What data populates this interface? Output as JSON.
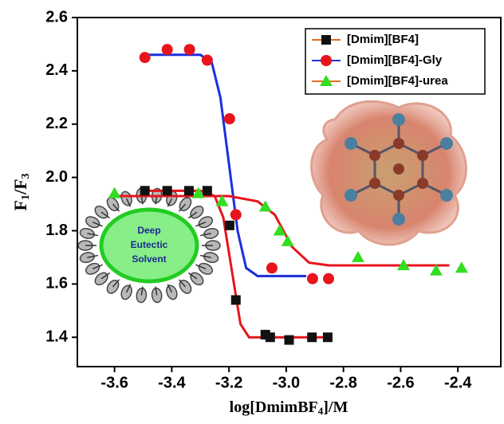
{
  "chart_data": {
    "type": "scatter",
    "y_label": [
      "F",
      "1",
      "/F",
      "3"
    ],
    "x_label": [
      "log[DmimBF",
      "4",
      "]/M"
    ],
    "inset_text": [
      "Deep",
      "Eutectic",
      "Solvent"
    ],
    "xlim": [
      -3.73,
      -2.25
    ],
    "ylim": [
      1.29,
      2.6
    ],
    "xticks": [
      -3.6,
      -3.4,
      -3.2,
      {
        "value": -3.0,
        "label": "-3.0"
      },
      -2.8,
      -2.6,
      -2.4
    ],
    "yticks": [
      1.4,
      1.6,
      1.8,
      {
        "value": 2.0,
        "label": "2.0"
      },
      2.2,
      2.4,
      2.6
    ],
    "legend": "top-right",
    "series": [
      {
        "name": "[Dmim][BF4]",
        "color": "#111111",
        "line_color": "#e07020",
        "marker": "square",
        "x": [
          -3.494,
          -3.416,
          -3.34,
          -3.276,
          -3.198,
          -3.176,
          -3.073,
          -3.056,
          -2.99,
          -2.91,
          -2.855
        ],
        "values": [
          1.95,
          1.95,
          1.95,
          1.95,
          1.82,
          1.54,
          1.41,
          1.4,
          1.39,
          1.4,
          1.4
        ]
      },
      {
        "name": "[Dmim][BF4]-Gly",
        "color": "#e8141c",
        "line_color": "#2233dd",
        "marker": "circle",
        "x": [
          -3.494,
          -3.416,
          -3.338,
          -3.276,
          -3.198,
          -3.176,
          -3.05,
          -2.908,
          -2.852
        ],
        "values": [
          2.45,
          2.48,
          2.48,
          2.44,
          2.22,
          1.86,
          1.66,
          1.62,
          1.62
        ]
      },
      {
        "name": "[Dmim][BF4]-urea",
        "color": "#33dd22",
        "line_color": "#e07020",
        "marker": "triangle",
        "x": [
          -3.6,
          -3.307,
          -3.224,
          -3.073,
          -3.023,
          -2.995,
          -2.749,
          -2.59,
          -2.476,
          -2.387
        ],
        "values": [
          1.94,
          1.94,
          1.91,
          1.89,
          1.8,
          1.76,
          1.7,
          1.67,
          1.65,
          1.66
        ]
      }
    ],
    "fit_lines": [
      {
        "color": "#e8141c",
        "x": [
          -3.49,
          -3.3,
          -3.25,
          -3.22,
          -3.19,
          -3.16,
          -3.13,
          -2.86
        ],
        "values": [
          1.95,
          1.95,
          1.93,
          1.85,
          1.65,
          1.45,
          1.4,
          1.4
        ]
      },
      {
        "color": "#1a2fe0",
        "x": [
          -3.49,
          -3.3,
          -3.26,
          -3.23,
          -3.2,
          -3.17,
          -3.14,
          -3.1,
          -2.93
        ],
        "values": [
          2.46,
          2.46,
          2.43,
          2.3,
          2.05,
          1.8,
          1.66,
          1.63,
          1.63
        ]
      },
      {
        "color": "#e8141c",
        "x": [
          -3.6,
          -3.2,
          -3.1,
          -3.04,
          -2.98,
          -2.92,
          -2.85,
          -2.43
        ],
        "values": [
          1.93,
          1.93,
          1.91,
          1.86,
          1.74,
          1.68,
          1.67,
          1.67
        ]
      }
    ]
  }
}
